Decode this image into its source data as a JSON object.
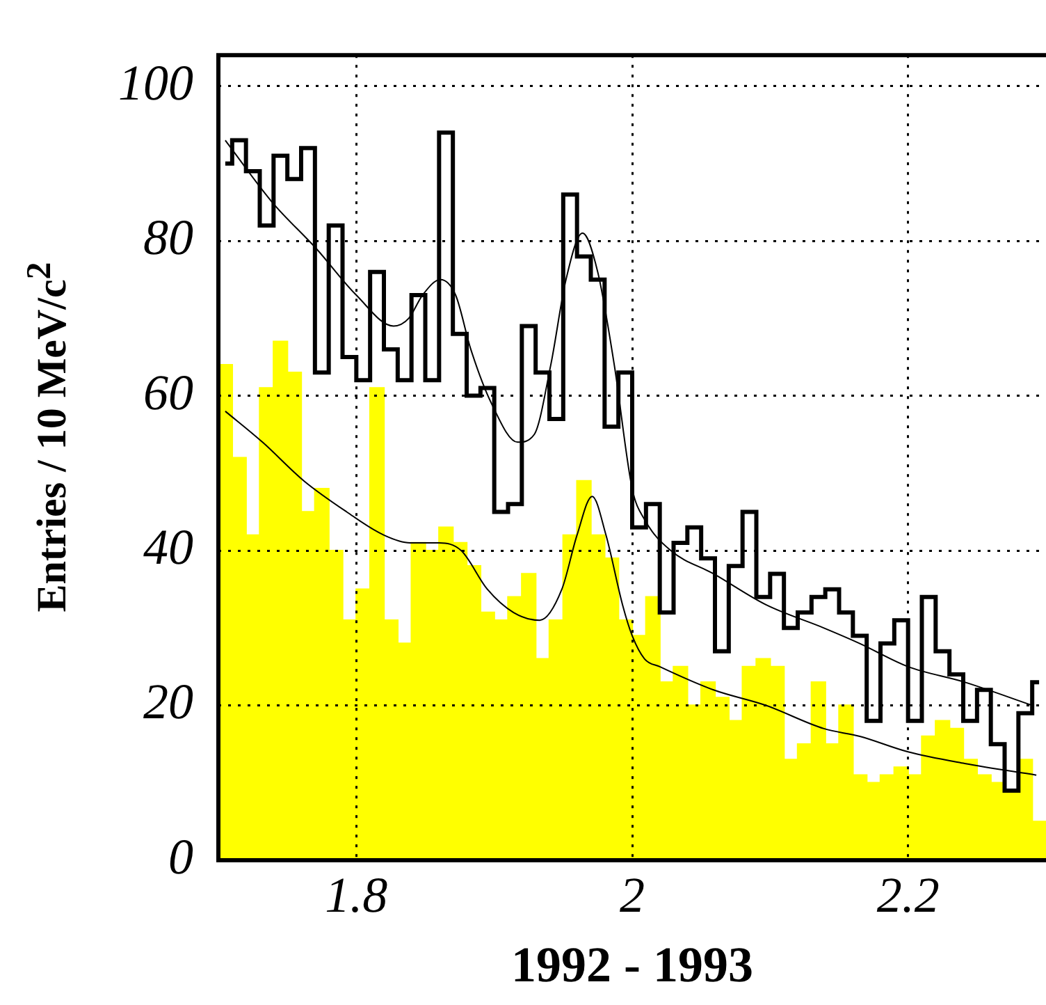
{
  "chart_data": {
    "type": "histogram",
    "xlabel": "1992 - 1993",
    "ylabel": "Entries / 10 MeV/c$^{2}$",
    "bins": [
      1.7,
      1.71,
      1.72,
      1.73,
      1.74,
      1.75,
      1.76,
      1.77,
      1.78,
      1.79,
      1.8,
      1.81,
      1.82,
      1.83,
      1.84,
      1.85,
      1.86,
      1.87,
      1.88,
      1.89,
      1.9,
      1.91,
      1.92,
      1.93,
      1.94,
      1.95,
      1.96,
      1.97,
      1.98,
      1.99,
      2.0,
      2.01,
      2.02,
      2.03,
      2.04,
      2.05,
      2.06,
      2.07,
      2.08,
      2.09,
      2.1,
      2.11,
      2.12,
      2.13,
      2.14,
      2.15,
      2.16,
      2.17,
      2.18,
      2.19,
      2.2,
      2.21,
      2.22,
      2.23,
      2.24,
      2.25,
      2.26,
      2.27,
      2.28,
      2.29,
      2.3
    ],
    "series": [
      {
        "type": "step",
        "color": "#000000",
        "x": [
          1.705,
          1.715,
          1.725,
          1.735,
          1.745,
          1.755,
          1.765,
          1.775,
          1.785,
          1.795,
          1.805,
          1.815,
          1.825,
          1.835,
          1.845,
          1.855,
          1.865,
          1.875,
          1.885,
          1.895,
          1.905,
          1.915,
          1.925,
          1.935,
          1.945,
          1.955,
          1.965,
          1.975,
          1.985,
          1.995,
          2.005,
          2.015,
          2.025,
          2.035,
          2.045,
          2.055,
          2.065,
          2.075,
          2.085,
          2.095,
          2.105,
          2.115,
          2.125,
          2.135,
          2.145,
          2.155,
          2.165,
          2.175,
          2.185,
          2.195,
          2.205,
          2.215,
          2.225,
          2.235,
          2.245,
          2.255,
          2.265,
          2.275,
          2.285,
          2.295
        ],
        "values": [
          90,
          93,
          89,
          82,
          91,
          88,
          92,
          63,
          82,
          65,
          62,
          76,
          66,
          62,
          73,
          62,
          94,
          68,
          60,
          61,
          45,
          46,
          69,
          63,
          57,
          86,
          78,
          75,
          56,
          63,
          43,
          46,
          32,
          41,
          43,
          39,
          27,
          38,
          45,
          34,
          37,
          30,
          32,
          34,
          35,
          32,
          29,
          18,
          28,
          31,
          18,
          34,
          27,
          24,
          18,
          22,
          15,
          9,
          19,
          23
        ]
      },
      {
        "type": "histogram",
        "color": "#ffff00",
        "values": [
          64,
          52,
          42,
          61,
          67,
          63,
          45,
          48,
          40,
          31,
          35,
          61,
          31,
          28,
          41,
          40,
          43,
          41,
          38,
          32,
          31,
          34,
          37,
          26,
          31,
          42,
          49,
          42,
          39,
          31,
          29,
          34,
          23,
          25,
          20,
          23,
          21,
          18,
          25,
          26,
          25,
          13,
          15,
          23,
          15,
          20,
          11,
          10,
          11,
          12,
          11,
          16,
          18,
          17,
          13,
          11,
          10,
          9,
          13,
          5
        ]
      },
      {
        "type": "line",
        "color": "#000000",
        "x": [
          1.705,
          1.739,
          1.771,
          1.8,
          1.827,
          1.838,
          1.848,
          1.861,
          1.872,
          1.883,
          1.898,
          1.917,
          1.929,
          1.941,
          1.952,
          1.964,
          1.975,
          1.987,
          2.0,
          2.009,
          2.028,
          2.059,
          2.097,
          2.139,
          2.165,
          2.2,
          2.241,
          2.29
        ],
        "values": [
          93,
          85,
          79,
          73,
          69,
          70,
          73,
          75,
          73,
          66,
          59,
          54,
          55,
          64,
          75,
          81,
          76,
          64,
          48,
          44,
          40,
          37,
          33,
          30,
          28,
          25,
          23,
          20
        ]
      },
      {
        "type": "line",
        "color": "#000000",
        "x": [
          1.705,
          1.732,
          1.762,
          1.793,
          1.82,
          1.839,
          1.86,
          1.876,
          1.895,
          1.914,
          1.933,
          1.949,
          1.96,
          1.971,
          1.981,
          1.993,
          2.0,
          2.009,
          2.02,
          2.059,
          2.097,
          2.139,
          2.165,
          2.2,
          2.241,
          2.293
        ],
        "values": [
          58,
          54,
          49,
          45,
          42,
          41,
          41,
          40,
          35,
          32,
          31,
          35,
          42,
          47,
          42,
          33,
          29,
          26,
          25,
          22,
          20,
          17,
          16,
          14,
          12.5,
          11
        ]
      }
    ],
    "xlim": [
      1.7,
      2.3
    ],
    "xticks": [
      1.8,
      2.0,
      2.2
    ],
    "ylim": [
      0,
      104
    ],
    "yticks": [
      0,
      20,
      40,
      60,
      80,
      100
    ],
    "grid": true
  }
}
